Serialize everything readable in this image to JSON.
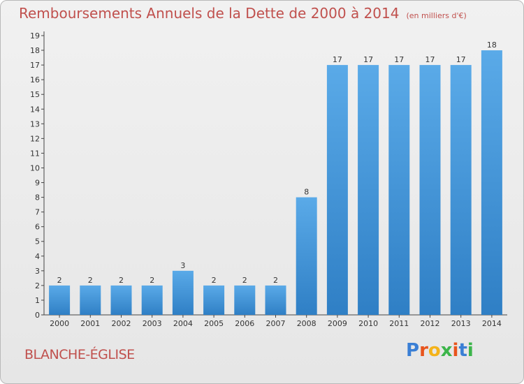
{
  "header": {
    "title": "Remboursements Annuels de la Dette de 2000 à 2014",
    "subtitle": "(en milliers d'€)"
  },
  "footer": {
    "commune": "BLANCHE-ÉGLISE",
    "logo_letters": [
      "P",
      "r",
      "o",
      "x",
      "i",
      "t",
      "i"
    ],
    "logo_colors": [
      "#3a7fd5",
      "#e8541c",
      "#f4b31a",
      "#3cb54a",
      "#e8541c",
      "#3a7fd5",
      "#3cb54a"
    ]
  },
  "chart_data": {
    "type": "bar",
    "categories": [
      "2000",
      "2001",
      "2002",
      "2003",
      "2004",
      "2005",
      "2006",
      "2007",
      "2008",
      "2009",
      "2010",
      "2011",
      "2012",
      "2013",
      "2014"
    ],
    "values": [
      2,
      2,
      2,
      2,
      3,
      2,
      2,
      2,
      8,
      17,
      17,
      17,
      17,
      17,
      18
    ],
    "data_labels": [
      "2",
      "2",
      "2",
      "2",
      "3",
      "2",
      "2",
      "2",
      "8",
      "17",
      "17",
      "17",
      "17",
      "17",
      "18"
    ],
    "y_ticks": [
      "0",
      "1",
      "2",
      "3",
      "4",
      "5",
      "6",
      "7",
      "8",
      "9",
      "10",
      "11",
      "12",
      "13",
      "14",
      "15",
      "16",
      "17",
      "18",
      "19"
    ],
    "ylim": [
      0,
      19
    ],
    "grid": false,
    "bar_color": "#4a98dc",
    "title": "Remboursements Annuels de la Dette de 2000 à 2014",
    "xlabel": "",
    "ylabel": ""
  }
}
